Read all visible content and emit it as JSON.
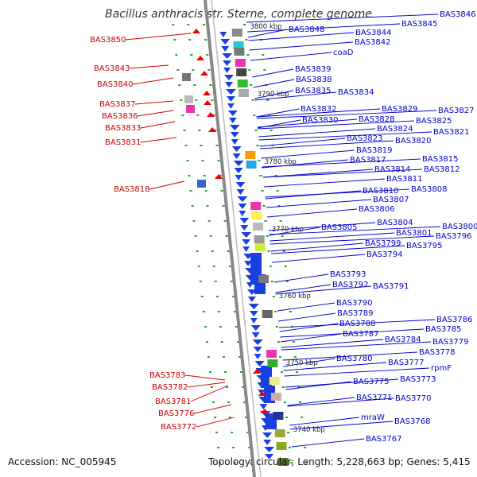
{
  "title": "Bacillus anthracis str. Sterne, complete genome",
  "accession": "Accession: NC_005945",
  "topology": "Topology: circular; Length: 5,228,663 bp; Genes: 5,415",
  "colors": {
    "left_label": "#cc0000",
    "right_label": "#0000cc",
    "backbone": "#888888",
    "tick": "#22aa22"
  },
  "scale_labels": [
    "3800 kbp",
    "3790 kbp",
    "3780 kbp",
    "3770 kbp",
    "3760 kbp",
    "3750 kbp",
    "3740 kbp"
  ],
  "left_labels": [
    "BAS3850",
    "BAS3843",
    "BAS3840",
    "BAS3837",
    "BAS3836",
    "BAS3833",
    "BAS3831",
    "BAS3818",
    "BAS3783",
    "BAS3782",
    "BAS3781",
    "BAS3776",
    "BAS3772"
  ],
  "right_labels": [
    "BAS3846",
    "BAS3845",
    "BAS3848",
    "BAS3844",
    "BAS3842",
    "coaD",
    "BAS3839",
    "BAS3838",
    "BAS3835",
    "BAS3834",
    "BAS3832",
    "BAS3829",
    "BAS3827",
    "BAS3830",
    "BAS3828",
    "BAS3825",
    "BAS3824",
    "BAS3821",
    "BAS3823",
    "BAS3820",
    "BAS3819",
    "BAS3817",
    "BAS3815",
    "BAS3814",
    "BAS3812",
    "BAS3811",
    "BAS3810",
    "BAS3808",
    "BAS3807",
    "BAS3806",
    "BAS3804",
    "BAS3800",
    "BAS3805",
    "BAS3801",
    "BAS3796",
    "BAS3799",
    "BAS3795",
    "BAS3794",
    "BAS3793",
    "BAS3792",
    "BAS3791",
    "BAS3790",
    "BAS3789",
    "BAS3786",
    "BAS3788",
    "BAS3785",
    "BAS3787",
    "BAS3779",
    "BAS3784",
    "BAS3778",
    "BAS3780",
    "BAS3777",
    "rpmF",
    "BAS3775",
    "BAS3773",
    "BAS3771",
    "BAS3770",
    "mraW",
    "BAS3768",
    "BAS3767"
  ]
}
